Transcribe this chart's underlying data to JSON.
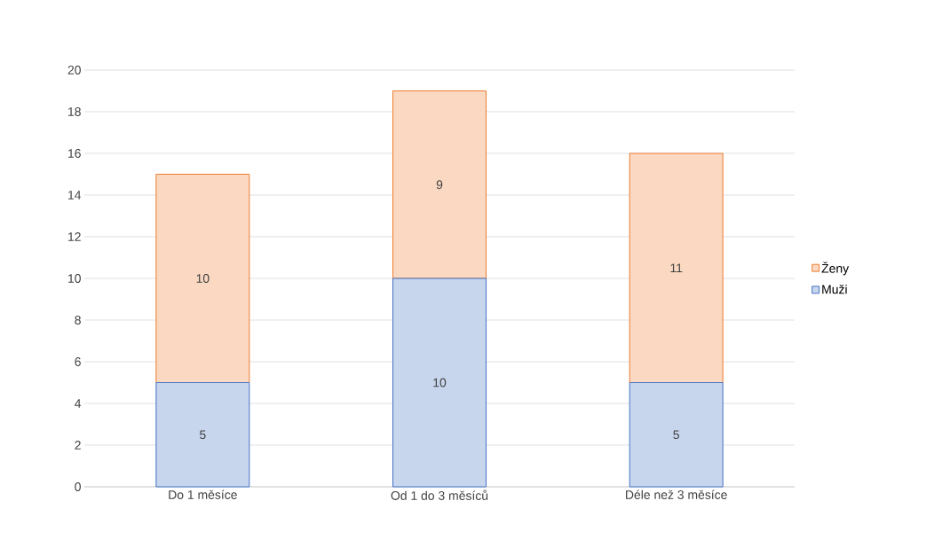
{
  "chart_data": {
    "type": "bar",
    "stacked": true,
    "categories": [
      "Do 1 měsíce",
      "Od 1 do 3 měsíců",
      "Déle než 3 měsíce"
    ],
    "series": [
      {
        "name": "Muži",
        "color": "#4472c4",
        "values": [
          5,
          10,
          5
        ]
      },
      {
        "name": "Ženy",
        "color": "#ed7d31",
        "values": [
          10,
          9,
          11
        ]
      }
    ],
    "ylim": [
      0,
      20
    ],
    "yticks": [
      0,
      2,
      4,
      6,
      8,
      10,
      12,
      14,
      16,
      18,
      20
    ],
    "grid": "y",
    "legend": "right",
    "data_labels": true
  }
}
